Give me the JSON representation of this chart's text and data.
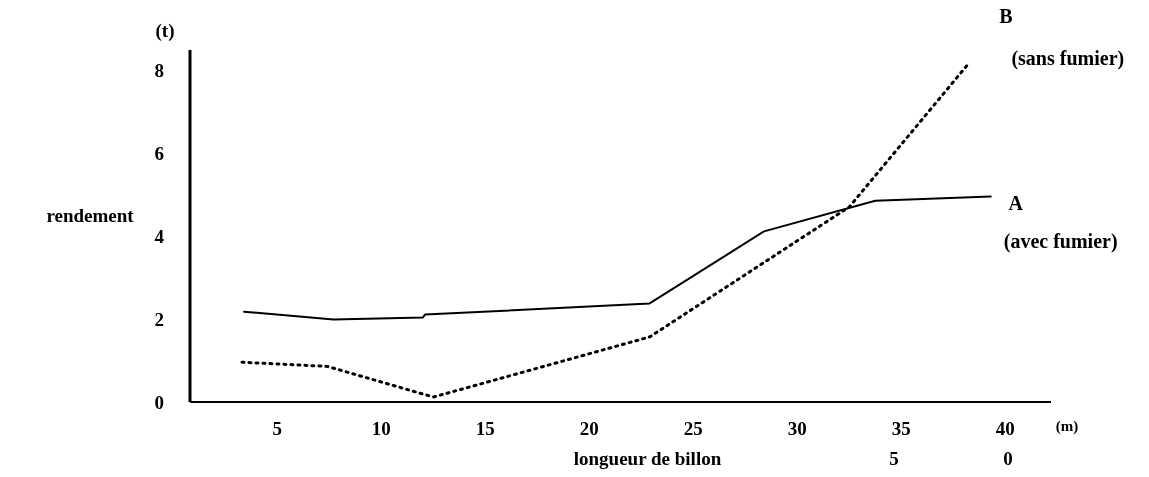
{
  "chart_data": {
    "type": "line",
    "xlabel": "longueur de billon",
    "ylabel": "rendement",
    "annotations": [
      "(t)",
      "(m)",
      "5",
      "0"
    ],
    "xlim": [
      0.8,
      42.2
    ],
    "xticks": [
      5,
      10,
      15,
      20,
      25,
      30,
      35,
      40
    ],
    "ylim": [
      0,
      8.5
    ],
    "yticks": [
      0,
      2,
      4,
      6,
      8
    ],
    "grid": false,
    "legend": false,
    "marker": "none",
    "series": [
      {
        "name": "A (avec fumier)",
        "color": "#000000",
        "line_style": "solid",
        "x": [
          3.4,
          7.7,
          12.0,
          12.1,
          22.9,
          28.4,
          33.75,
          39.3
        ],
        "values": [
          2.18,
          1.99,
          2.04,
          2.11,
          2.38,
          4.12,
          4.86,
          4.96
        ]
      },
      {
        "name": "B (sans fumier)",
        "color": "#000000",
        "line_style": "dotted",
        "x": [
          3.3,
          7.4,
          12.5,
          22.9,
          32.5,
          38.2
        ],
        "values": [
          0.96,
          0.86,
          0.12,
          1.57,
          4.71,
          8.15
        ]
      }
    ]
  }
}
